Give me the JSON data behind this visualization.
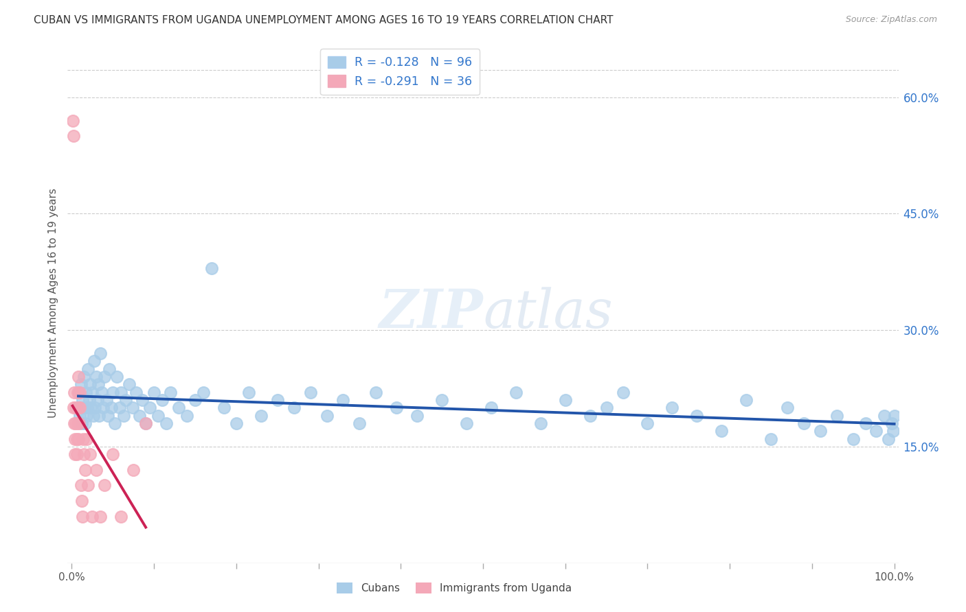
{
  "title": "CUBAN VS IMMIGRANTS FROM UGANDA UNEMPLOYMENT AMONG AGES 16 TO 19 YEARS CORRELATION CHART",
  "source": "Source: ZipAtlas.com",
  "ylabel": "Unemployment Among Ages 16 to 19 years",
  "right_yticks": [
    0.15,
    0.3,
    0.45,
    0.6
  ],
  "right_yticklabels": [
    "15.0%",
    "30.0%",
    "45.0%",
    "60.0%"
  ],
  "legend_cubans": "Cubans",
  "legend_uganda": "Immigrants from Uganda",
  "cuban_R": -0.128,
  "cuban_N": 96,
  "uganda_R": -0.291,
  "uganda_N": 36,
  "cuban_color": "#a8cce8",
  "uganda_color": "#f4a8b8",
  "cuban_line_color": "#2255aa",
  "uganda_line_color": "#cc2255",
  "background_color": "#ffffff",
  "grid_color": "#cccccc",
  "title_color": "#333333",
  "source_color": "#999999",
  "right_axis_color": "#3377cc",
  "ylim_min": 0.0,
  "ylim_max": 0.67,
  "xlim_min": -0.005,
  "xlim_max": 1.005,
  "cubans_x": [
    0.008,
    0.009,
    0.01,
    0.011,
    0.012,
    0.013,
    0.014,
    0.015,
    0.016,
    0.017,
    0.018,
    0.019,
    0.02,
    0.021,
    0.022,
    0.023,
    0.025,
    0.026,
    0.027,
    0.028,
    0.03,
    0.031,
    0.032,
    0.033,
    0.035,
    0.036,
    0.038,
    0.04,
    0.042,
    0.044,
    0.046,
    0.048,
    0.05,
    0.052,
    0.055,
    0.058,
    0.06,
    0.063,
    0.066,
    0.07,
    0.074,
    0.078,
    0.082,
    0.086,
    0.09,
    0.095,
    0.1,
    0.105,
    0.11,
    0.115,
    0.12,
    0.13,
    0.14,
    0.15,
    0.16,
    0.17,
    0.185,
    0.2,
    0.215,
    0.23,
    0.25,
    0.27,
    0.29,
    0.31,
    0.33,
    0.35,
    0.37,
    0.395,
    0.42,
    0.45,
    0.48,
    0.51,
    0.54,
    0.57,
    0.6,
    0.63,
    0.65,
    0.67,
    0.7,
    0.73,
    0.76,
    0.79,
    0.82,
    0.85,
    0.87,
    0.89,
    0.91,
    0.93,
    0.95,
    0.965,
    0.978,
    0.988,
    0.993,
    0.997,
    0.999,
    1.0
  ],
  "cubans_y": [
    0.2,
    0.22,
    0.19,
    0.23,
    0.18,
    0.21,
    0.2,
    0.24,
    0.18,
    0.22,
    0.19,
    0.2,
    0.25,
    0.21,
    0.23,
    0.2,
    0.22,
    0.19,
    0.26,
    0.2,
    0.24,
    0.21,
    0.23,
    0.19,
    0.27,
    0.22,
    0.2,
    0.24,
    0.21,
    0.19,
    0.25,
    0.2,
    0.22,
    0.18,
    0.24,
    0.2,
    0.22,
    0.19,
    0.21,
    0.23,
    0.2,
    0.22,
    0.19,
    0.21,
    0.18,
    0.2,
    0.22,
    0.19,
    0.21,
    0.18,
    0.22,
    0.2,
    0.19,
    0.21,
    0.22,
    0.38,
    0.2,
    0.18,
    0.22,
    0.19,
    0.21,
    0.2,
    0.22,
    0.19,
    0.21,
    0.18,
    0.22,
    0.2,
    0.19,
    0.21,
    0.18,
    0.2,
    0.22,
    0.18,
    0.21,
    0.19,
    0.2,
    0.22,
    0.18,
    0.2,
    0.19,
    0.17,
    0.21,
    0.16,
    0.2,
    0.18,
    0.17,
    0.19,
    0.16,
    0.18,
    0.17,
    0.19,
    0.16,
    0.18,
    0.17,
    0.19
  ],
  "uganda_x": [
    0.001,
    0.002,
    0.002,
    0.003,
    0.003,
    0.004,
    0.004,
    0.005,
    0.005,
    0.006,
    0.006,
    0.007,
    0.007,
    0.008,
    0.008,
    0.009,
    0.009,
    0.01,
    0.01,
    0.011,
    0.012,
    0.013,
    0.014,
    0.015,
    0.016,
    0.018,
    0.02,
    0.022,
    0.025,
    0.03,
    0.035,
    0.04,
    0.05,
    0.06,
    0.075,
    0.09
  ],
  "uganda_y": [
    0.57,
    0.55,
    0.2,
    0.22,
    0.18,
    0.16,
    0.14,
    0.2,
    0.18,
    0.16,
    0.14,
    0.22,
    0.18,
    0.16,
    0.24,
    0.2,
    0.18,
    0.22,
    0.2,
    0.1,
    0.08,
    0.06,
    0.16,
    0.14,
    0.12,
    0.16,
    0.1,
    0.14,
    0.06,
    0.12,
    0.06,
    0.1,
    0.14,
    0.06,
    0.12,
    0.18
  ]
}
